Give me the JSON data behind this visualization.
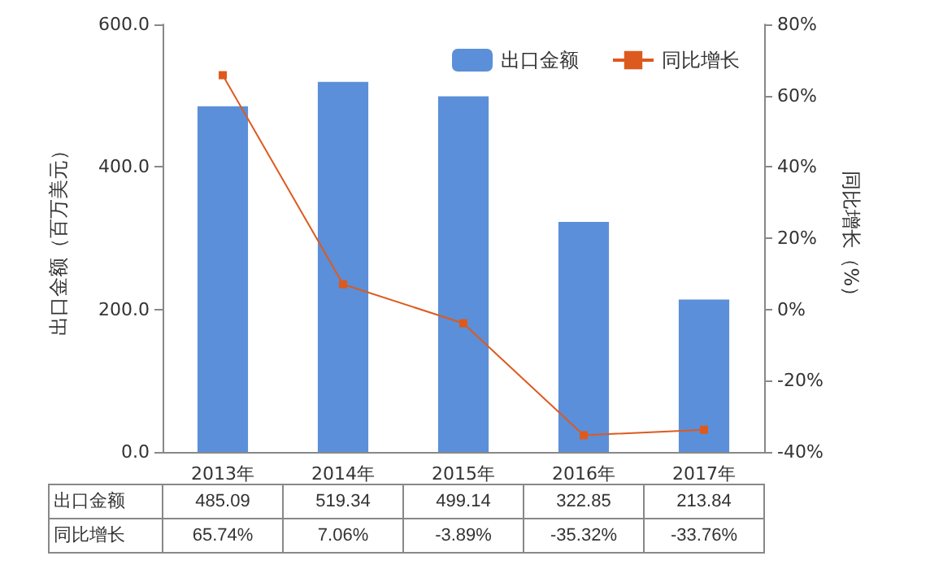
{
  "chart_data": {
    "type": "bar",
    "categories": [
      "2013年",
      "2014年",
      "2015年",
      "2016年",
      "2017年"
    ],
    "ylabel": "出口金额（百万美元）",
    "y2label": "同比增长（%）",
    "legend": "top right",
    "marker": "square",
    "ylim": [
      0,
      600
    ],
    "yticks": [
      {
        "value": 0,
        "label": "0.0"
      },
      {
        "value": 200,
        "label": "200.0"
      },
      {
        "value": 400,
        "label": "400.0"
      },
      {
        "value": 600,
        "label": "600.0"
      }
    ],
    "y2lim": [
      -40,
      80
    ],
    "y2ticks": [
      {
        "value": -40,
        "label": "-40%"
      },
      {
        "value": -20,
        "label": "-20%"
      },
      {
        "value": 0,
        "label": "0%"
      },
      {
        "value": 20,
        "label": "20%"
      },
      {
        "value": 40,
        "label": "40%"
      },
      {
        "value": 60,
        "label": "60%"
      },
      {
        "value": 80,
        "label": "80%"
      }
    ],
    "series": [
      {
        "name": "出口金额",
        "color": "#5b8fd9",
        "values": [
          485.09,
          519.34,
          499.14,
          322.85,
          213.84
        ],
        "value_labels": [
          "485.09",
          "519.34",
          "499.14",
          "322.85",
          "213.84"
        ]
      },
      {
        "name": "同比增长",
        "type": "line",
        "axis": "y2",
        "color": "#dd5a1e",
        "values": [
          65.74,
          7.06,
          -3.89,
          -35.32,
          -33.76
        ],
        "value_labels": [
          "65.74%",
          "7.06%",
          "-3.89%",
          "-35.32%",
          "-33.76%"
        ]
      }
    ]
  }
}
